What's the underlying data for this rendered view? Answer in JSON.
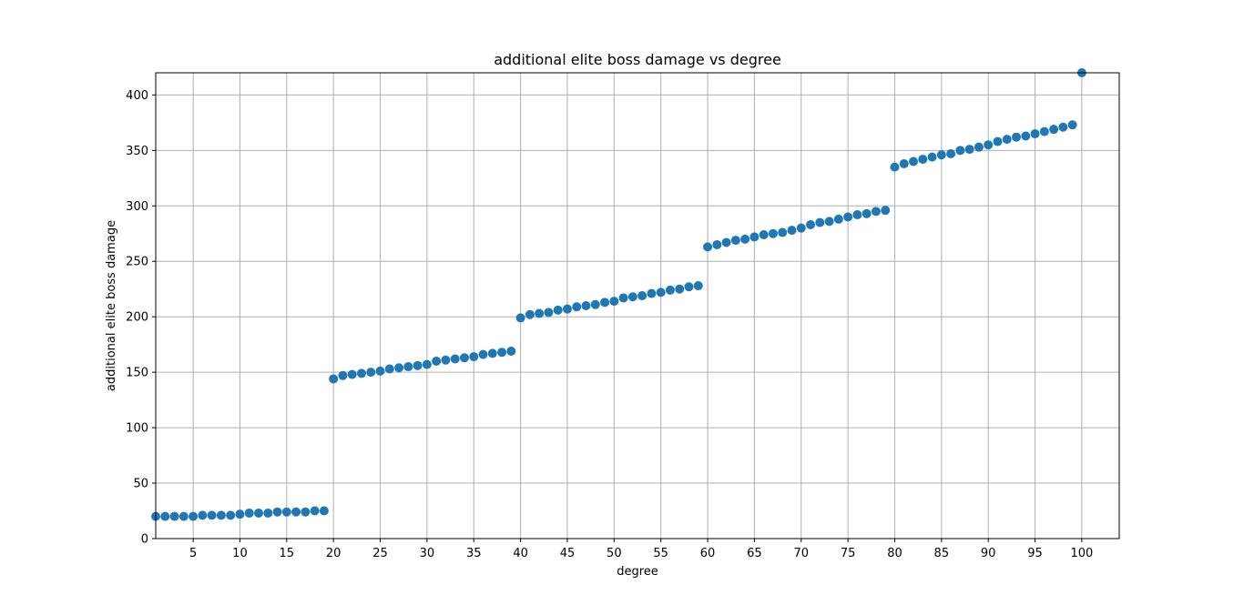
{
  "chart_data": {
    "type": "scatter",
    "title": "additional elite boss damage vs degree",
    "xlabel": "degree",
    "ylabel": "additional elite boss damage",
    "xlim": [
      1,
      104
    ],
    "ylim": [
      0,
      420
    ],
    "xticks": [
      5,
      10,
      15,
      20,
      25,
      30,
      35,
      40,
      45,
      50,
      55,
      60,
      65,
      70,
      75,
      80,
      85,
      90,
      95,
      100
    ],
    "yticks": [
      0,
      50,
      100,
      150,
      200,
      250,
      300,
      350,
      400
    ],
    "grid": true,
    "color": "#1f77b4",
    "x": [
      1,
      2,
      3,
      4,
      5,
      6,
      7,
      8,
      9,
      10,
      11,
      12,
      13,
      14,
      15,
      16,
      17,
      18,
      19,
      20,
      21,
      22,
      23,
      24,
      25,
      26,
      27,
      28,
      29,
      30,
      31,
      32,
      33,
      34,
      35,
      36,
      37,
      38,
      39,
      40,
      41,
      42,
      43,
      44,
      45,
      46,
      47,
      48,
      49,
      50,
      51,
      52,
      53,
      54,
      55,
      56,
      57,
      58,
      59,
      60,
      61,
      62,
      63,
      64,
      65,
      66,
      67,
      68,
      69,
      70,
      71,
      72,
      73,
      74,
      75,
      76,
      77,
      78,
      79,
      80,
      81,
      82,
      83,
      84,
      85,
      86,
      87,
      88,
      89,
      90,
      91,
      92,
      93,
      94,
      95,
      96,
      97,
      98,
      99,
      100
    ],
    "y": [
      20,
      20,
      20,
      20,
      20,
      21,
      21,
      21,
      21,
      22,
      23,
      23,
      23,
      24,
      24,
      24,
      24,
      25,
      25,
      144,
      147,
      148,
      149,
      150,
      151,
      153,
      154,
      155,
      156,
      157,
      160,
      161,
      162,
      163,
      164,
      166,
      167,
      168,
      169,
      199,
      202,
      203,
      204,
      206,
      207,
      209,
      210,
      211,
      213,
      214,
      217,
      218,
      219,
      221,
      222,
      224,
      225,
      227,
      228,
      263,
      265,
      267,
      269,
      270,
      272,
      274,
      275,
      276,
      278,
      280,
      283,
      285,
      286,
      288,
      290,
      292,
      293,
      295,
      296,
      335,
      338,
      340,
      342,
      344,
      346,
      347,
      350,
      351,
      353,
      355,
      358,
      360,
      362,
      363,
      365,
      367,
      369,
      371,
      373,
      420
    ]
  }
}
